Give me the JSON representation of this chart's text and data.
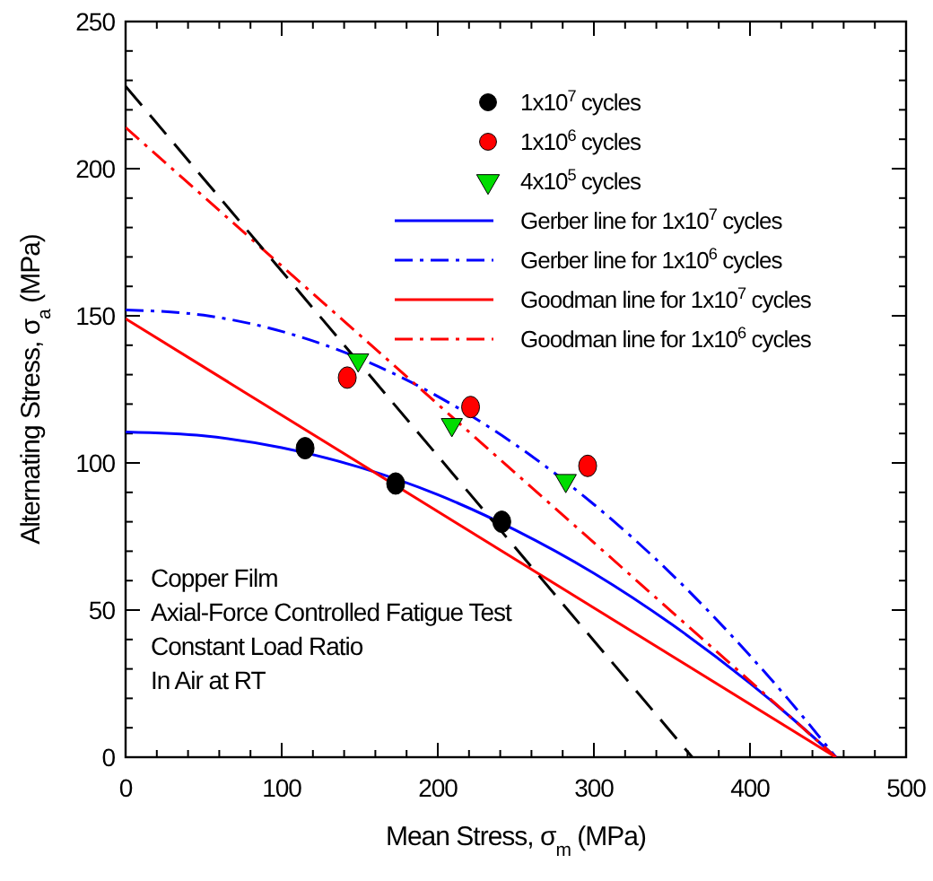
{
  "chart_data": {
    "type": "scatter",
    "xlabel": "Mean Stress, σ$_{m}$ (MPa)",
    "ylabel": "Alternating Stress, σ$_{a}$ (MPa)",
    "xlim": [
      0,
      500
    ],
    "ylim": [
      0,
      250
    ],
    "xticks": [
      0,
      {
        "value": 20,
        "label": null
      },
      {
        "value": 40,
        "label": null
      },
      {
        "value": 60,
        "label": null
      },
      {
        "value": 80,
        "label": null
      },
      100,
      {
        "value": 120,
        "label": null
      },
      {
        "value": 140,
        "label": null
      },
      {
        "value": 160,
        "label": null
      },
      {
        "value": 180,
        "label": null
      },
      200,
      {
        "value": 220,
        "label": null
      },
      {
        "value": 240,
        "label": null
      },
      {
        "value": 260,
        "label": null
      },
      {
        "value": 280,
        "label": null
      },
      300,
      {
        "value": 320,
        "label": null
      },
      {
        "value": 340,
        "label": null
      },
      {
        "value": 360,
        "label": null
      },
      {
        "value": 380,
        "label": null
      },
      400,
      {
        "value": 420,
        "label": null
      },
      {
        "value": 440,
        "label": null
      },
      {
        "value": 460,
        "label": null
      },
      {
        "value": 480,
        "label": null
      },
      500
    ],
    "yticks": [
      0,
      {
        "value": 10,
        "label": null
      },
      {
        "value": 20,
        "label": null
      },
      {
        "value": 30,
        "label": null
      },
      {
        "value": 40,
        "label": null
      },
      50,
      {
        "value": 60,
        "label": null
      },
      {
        "value": 70,
        "label": null
      },
      {
        "value": 80,
        "label": null
      },
      {
        "value": 90,
        "label": null
      },
      100,
      {
        "value": 110,
        "label": null
      },
      {
        "value": 120,
        "label": null
      },
      {
        "value": 130,
        "label": null
      },
      {
        "value": 140,
        "label": null
      },
      150,
      {
        "value": 160,
        "label": null
      },
      {
        "value": 170,
        "label": null
      },
      {
        "value": 180,
        "label": null
      },
      {
        "value": 190,
        "label": null
      },
      200,
      {
        "value": 210,
        "label": null
      },
      {
        "value": 220,
        "label": null
      },
      {
        "value": 230,
        "label": null
      },
      {
        "value": 240,
        "label": null
      },
      250
    ],
    "grid": false,
    "legend": "top right",
    "series": [
      {
        "name": "1x10$^{7}$ cycles",
        "type": "scatter",
        "marker": "circle",
        "color": "#000000",
        "x": [
          115,
          173,
          241
        ],
        "values": [
          105,
          93,
          80
        ]
      },
      {
        "name": "1x10$^{6}$ cycles",
        "type": "scatter",
        "marker": "circle",
        "color": "#ff0000",
        "x": [
          142,
          221,
          296
        ],
        "values": [
          129,
          119,
          99
        ]
      },
      {
        "name": "4x10$^{5}$ cycles",
        "type": "scatter",
        "marker": "triangle",
        "color": "#00dd00",
        "x": [
          149,
          209,
          282
        ],
        "values": [
          135,
          113,
          94
        ]
      },
      {
        "name": "Gerber line for 1x10$^{7}$ cycles",
        "type": "line",
        "line_style": "solid",
        "color": "#0000ff",
        "x": [
          0,
          50,
          100,
          150,
          200,
          250,
          300,
          350,
          400,
          425,
          455
        ],
        "values": [
          110.5,
          109.2,
          105.2,
          98.5,
          89.2,
          77.1,
          62.5,
          45.1,
          25.1,
          14.1,
          0
        ]
      },
      {
        "name": "Gerber line for 1x10$^{6}$ cycles",
        "type": "line",
        "line_style": "dashdot",
        "color": "#0000ff",
        "x": [
          0,
          50,
          100,
          150,
          200,
          250,
          300,
          350,
          400,
          425,
          455
        ],
        "values": [
          152,
          150.2,
          144.7,
          135.5,
          122.6,
          106.1,
          85.9,
          62.1,
          34.5,
          19.4,
          0
        ]
      },
      {
        "name": "Goodman line for 1x10$^{7}$ cycles",
        "type": "line",
        "line_style": "solid",
        "color": "#ff0000",
        "x": [
          0,
          455
        ],
        "values": [
          149,
          0
        ]
      },
      {
        "name": "Goodman line for 1x10$^{6}$ cycles",
        "type": "line",
        "line_style": "dashdot",
        "color": "#ff0000",
        "x": [
          0,
          455
        ],
        "values": [
          214,
          0
        ]
      },
      {
        "type": "line",
        "line_style": "dashed",
        "color": "#000000",
        "x": [
          0,
          363
        ],
        "values": [
          228,
          0
        ]
      }
    ],
    "annotations": [
      "Copper Film",
      "Axial-Force Controlled Fatigue Test",
      "Constant Load Ratio",
      "In Air at RT"
    ]
  }
}
